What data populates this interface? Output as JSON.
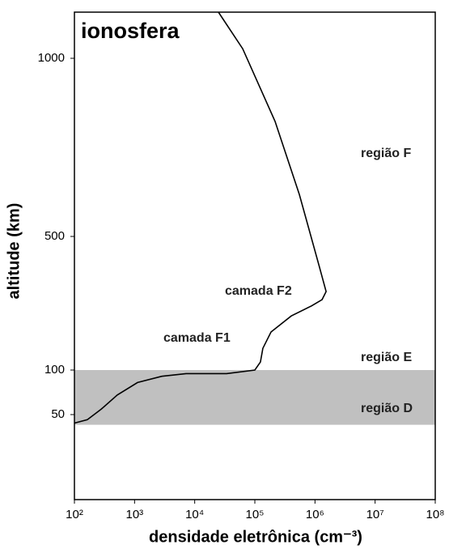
{
  "chart_data": {
    "type": "line",
    "title": "ionosfera",
    "xlabel": "densidade eletrônica (cm⁻³)",
    "ylabel": "altitude (km)",
    "xscale": "log",
    "xlim": [
      100,
      100000000
    ],
    "xticks": [
      {
        "value": 100,
        "label": "10²"
      },
      {
        "value": 1000,
        "label": "10³"
      },
      {
        "value": 10000,
        "label": "10⁴"
      },
      {
        "value": 100000,
        "label": "10⁵"
      },
      {
        "value": 1000000,
        "label": "10⁶"
      },
      {
        "value": 10000000,
        "label": "10⁷"
      },
      {
        "value": 100000000,
        "label": "10⁸"
      }
    ],
    "ylim": [
      0,
      1130
    ],
    "yticks": [
      50,
      100,
      500,
      1000
    ],
    "color": "#000000",
    "band": {
      "from": 44,
      "to": 100,
      "color": "#c0c0c0"
    },
    "x": [
      100,
      164,
      278,
      516,
      1120,
      2840,
      7190,
      33800,
      100000,
      124000,
      136000,
      186000,
      403000,
      875000,
      1310000,
      1530000,
      1190000,
      550000,
      217000,
      62800,
      24800
    ],
    "values": [
      45,
      47,
      56,
      72,
      86,
      93,
      96,
      96,
      100,
      124,
      165,
      214,
      262,
      292,
      311,
      335,
      408,
      618,
      823,
      1027,
      1130
    ],
    "annotations": [
      "região F",
      "camada F2",
      "camada F1",
      "região E",
      "região D"
    ]
  }
}
